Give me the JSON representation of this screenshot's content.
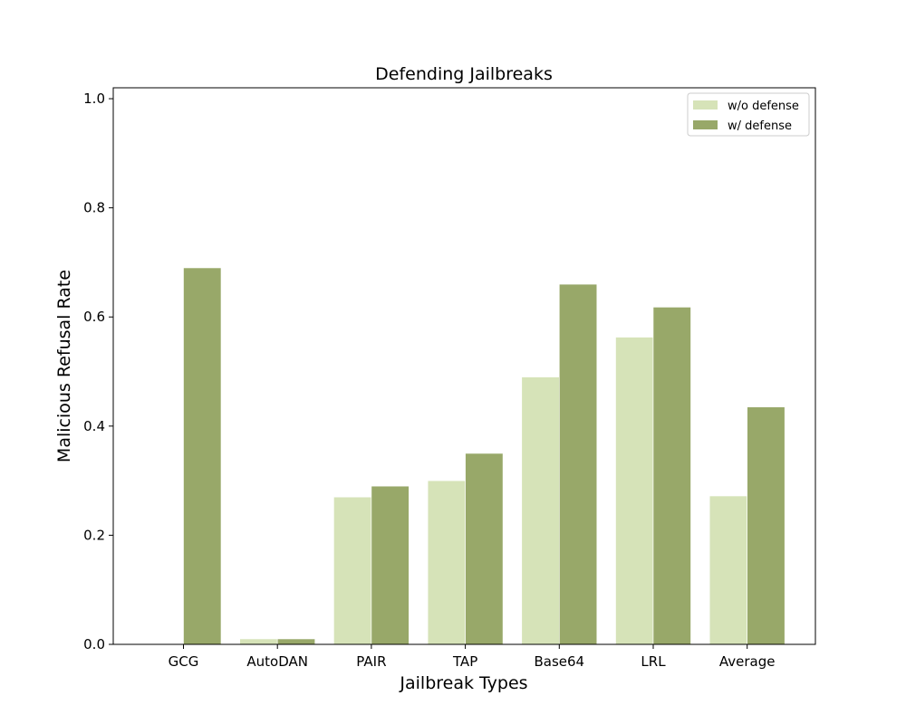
{
  "chart_data": {
    "type": "bar",
    "title": "Defending Jailbreaks",
    "xlabel": "Jailbreak Types",
    "ylabel": "Malicious Refusal Rate",
    "categories": [
      "GCG",
      "AutoDAN",
      "PAIR",
      "TAP",
      "Base64",
      "LRL",
      "Average"
    ],
    "series": [
      {
        "name": "w/o defense",
        "color": "#d6e3b8",
        "values": [
          0.0,
          0.01,
          0.27,
          0.3,
          0.49,
          0.563,
          0.272
        ]
      },
      {
        "name": "w/ defense",
        "color": "#98a869",
        "values": [
          0.69,
          0.01,
          0.29,
          0.35,
          0.66,
          0.618,
          0.435
        ]
      }
    ],
    "ylim": [
      0,
      1.02
    ],
    "yticks": [
      "0.0",
      "0.2",
      "0.4",
      "0.6",
      "0.8",
      "1.0"
    ],
    "grid": false,
    "legend_position": "top-right"
  }
}
